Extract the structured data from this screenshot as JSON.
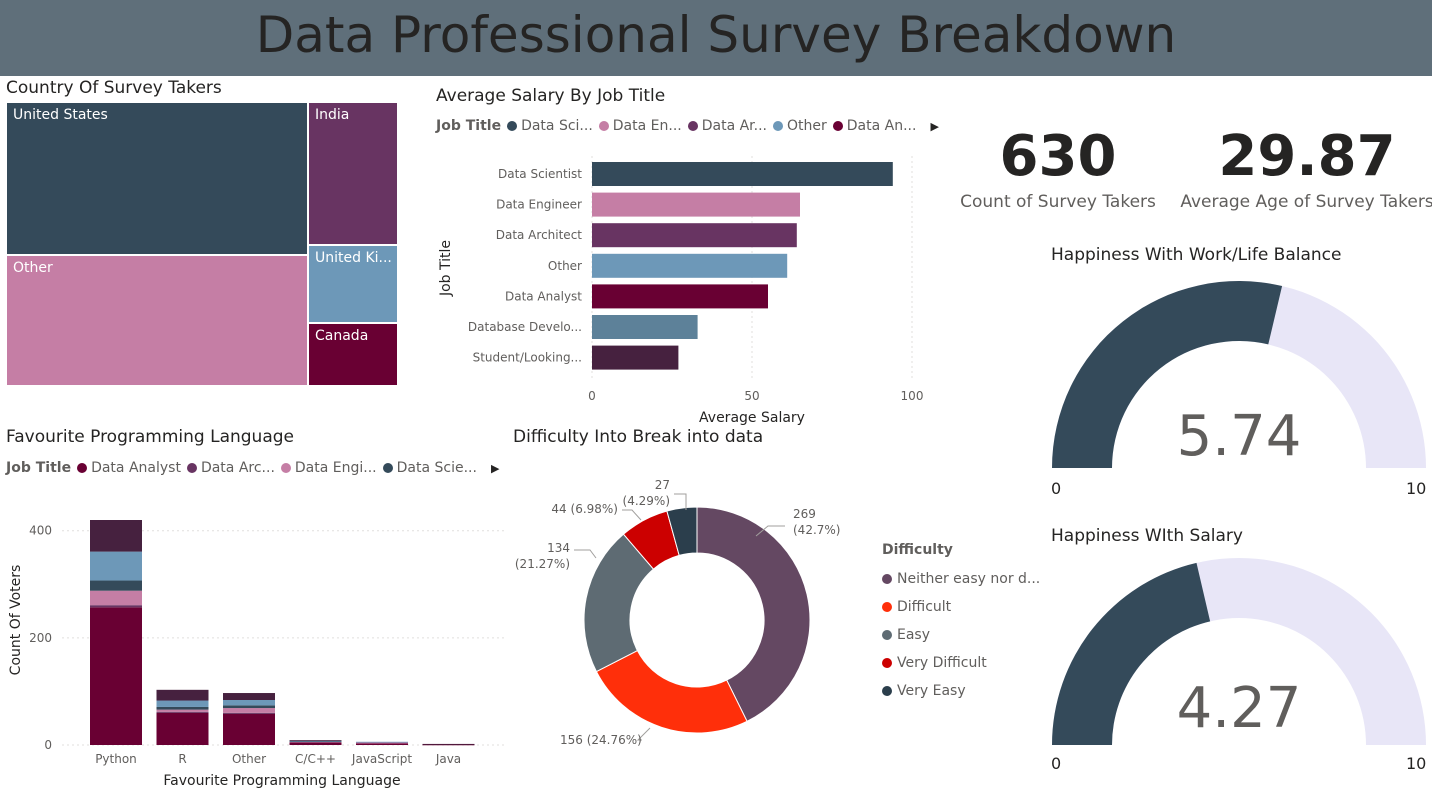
{
  "page": {
    "title": "Data Professional Survey Breakdown"
  },
  "colors": {
    "header_bg": "#5f6f7a",
    "data_scientist": "#344a5a",
    "data_engineer": "#c57ea5",
    "data_architect": "#683462",
    "other": "#6d98b8",
    "data_analyst": "#690033",
    "database_developer": "#5d8199",
    "student": "#46213f",
    "gauge_fill": "#344a5a",
    "gauge_track": "#e8e6f7"
  },
  "treemap": {
    "title": "Country Of Survey Takers",
    "cells": [
      {
        "label": "United States",
        "color": "#344a5a"
      },
      {
        "label": "Other",
        "color": "#c57ea5"
      },
      {
        "label": "India",
        "color": "#683462"
      },
      {
        "label": "United Ki...",
        "color": "#6d98b8"
      },
      {
        "label": "Canada",
        "color": "#690033"
      }
    ]
  },
  "salary_chart": {
    "title": "Average Salary By Job Title",
    "legend_title": "Job Title",
    "legend_items": [
      {
        "label": "Data Sci...",
        "color": "#344a5a"
      },
      {
        "label": "Data En...",
        "color": "#c57ea5"
      },
      {
        "label": "Data Ar...",
        "color": "#683462"
      },
      {
        "label": "Other",
        "color": "#6d98b8"
      },
      {
        "label": "Data An...",
        "color": "#690033"
      }
    ],
    "legend_arrow": "▶"
  },
  "kpis": {
    "count_value": "630",
    "count_label": "Count of Survey Takers",
    "age_value": "29.87",
    "age_label": "Average Age of Survey Takers"
  },
  "gauges": [
    {
      "title": "Happiness With Work/Life Balance",
      "value": 5.74,
      "value_text": "5.74",
      "min": "0",
      "max": "10"
    },
    {
      "title": "Happiness WIth Salary",
      "value": 4.27,
      "value_text": "4.27",
      "min": "0",
      "max": "10"
    }
  ],
  "lang_chart": {
    "title": "Favourite Programming Language",
    "legend_title": "Job Title",
    "legend_items": [
      {
        "label": "Data Analyst",
        "color": "#690033"
      },
      {
        "label": "Data Arc...",
        "color": "#683462"
      },
      {
        "label": "Data Engi...",
        "color": "#c57ea5"
      },
      {
        "label": "Data Scie...",
        "color": "#344a5a"
      }
    ],
    "legend_arrow": "▶"
  },
  "donut": {
    "title": "Difficulty Into Break into data",
    "legend_title": "Difficulty",
    "items": [
      {
        "label": "Neither easy nor d...",
        "value": 269,
        "label_text": "269",
        "pct_text": "(42.7%)",
        "color": "#644862"
      },
      {
        "label": "Difficult",
        "value": 156,
        "label_text": "156 (24.76%)",
        "pct_text": "",
        "color": "#ff2f0a"
      },
      {
        "label": "Easy",
        "value": 134,
        "label_text": "134",
        "pct_text": "(21.27%)",
        "color": "#5e6b73"
      },
      {
        "label": "Very Difficult",
        "value": 44,
        "label_text": "44 (6.98%)",
        "pct_text": "",
        "color": "#cc0000"
      },
      {
        "label": "Very Easy",
        "value": 27,
        "label_text": "27",
        "pct_text": "(4.29%)",
        "color": "#2b3e4c"
      }
    ]
  },
  "chart_data": [
    {
      "type": "bar",
      "orientation": "horizontal",
      "title": "Average Salary By Job Title",
      "xlabel": "Average Salary",
      "ylabel": "Job Title",
      "categories": [
        "Data Scientist",
        "Data Engineer",
        "Data Architect",
        "Other",
        "Data Analyst",
        "Database Develo...",
        "Student/Looking..."
      ],
      "values": [
        94,
        65,
        64,
        61,
        55,
        33,
        27
      ],
      "colors": [
        "#344a5a",
        "#c57ea5",
        "#683462",
        "#6d98b8",
        "#690033",
        "#5d8199",
        "#46213f"
      ],
      "xlim": [
        0,
        100
      ],
      "xticks": [
        "0",
        "50",
        "100"
      ],
      "grid": true
    },
    {
      "type": "bar",
      "stacked": true,
      "title": "Favourite Programming Language",
      "xlabel": "Favourite Programming Language",
      "ylabel": "Count Of Voters",
      "categories": [
        "Python",
        "R",
        "Other",
        "C/C++",
        "JavaScript",
        "Java"
      ],
      "series": [
        {
          "name": "Data Analyst",
          "color": "#690033",
          "values": [
            257,
            60,
            58,
            5,
            3,
            1
          ]
        },
        {
          "name": "Data Architect",
          "color": "#683462",
          "values": [
            4,
            2,
            2,
            0,
            0,
            0
          ]
        },
        {
          "name": "Data Engineer",
          "color": "#c57ea5",
          "values": [
            27,
            4,
            9,
            1,
            2,
            0
          ]
        },
        {
          "name": "Data Scientist",
          "color": "#344a5a",
          "values": [
            19,
            5,
            5,
            1,
            0,
            0
          ]
        },
        {
          "name": "Other",
          "color": "#6d98b8",
          "values": [
            54,
            12,
            10,
            1,
            1,
            0
          ]
        },
        {
          "name": "Student/Looking",
          "color": "#46213f",
          "values": [
            59,
            20,
            13,
            1,
            0,
            1
          ]
        }
      ],
      "ylim": [
        0,
        420
      ],
      "yticks": [
        "0",
        "200",
        "400"
      ],
      "grid": true
    },
    {
      "type": "pie",
      "donut": true,
      "title": "Difficulty Into Break into data",
      "categories": [
        "Neither easy nor d...",
        "Difficult",
        "Easy",
        "Very Difficult",
        "Very Easy"
      ],
      "values": [
        269,
        156,
        134,
        44,
        27
      ]
    }
  ]
}
